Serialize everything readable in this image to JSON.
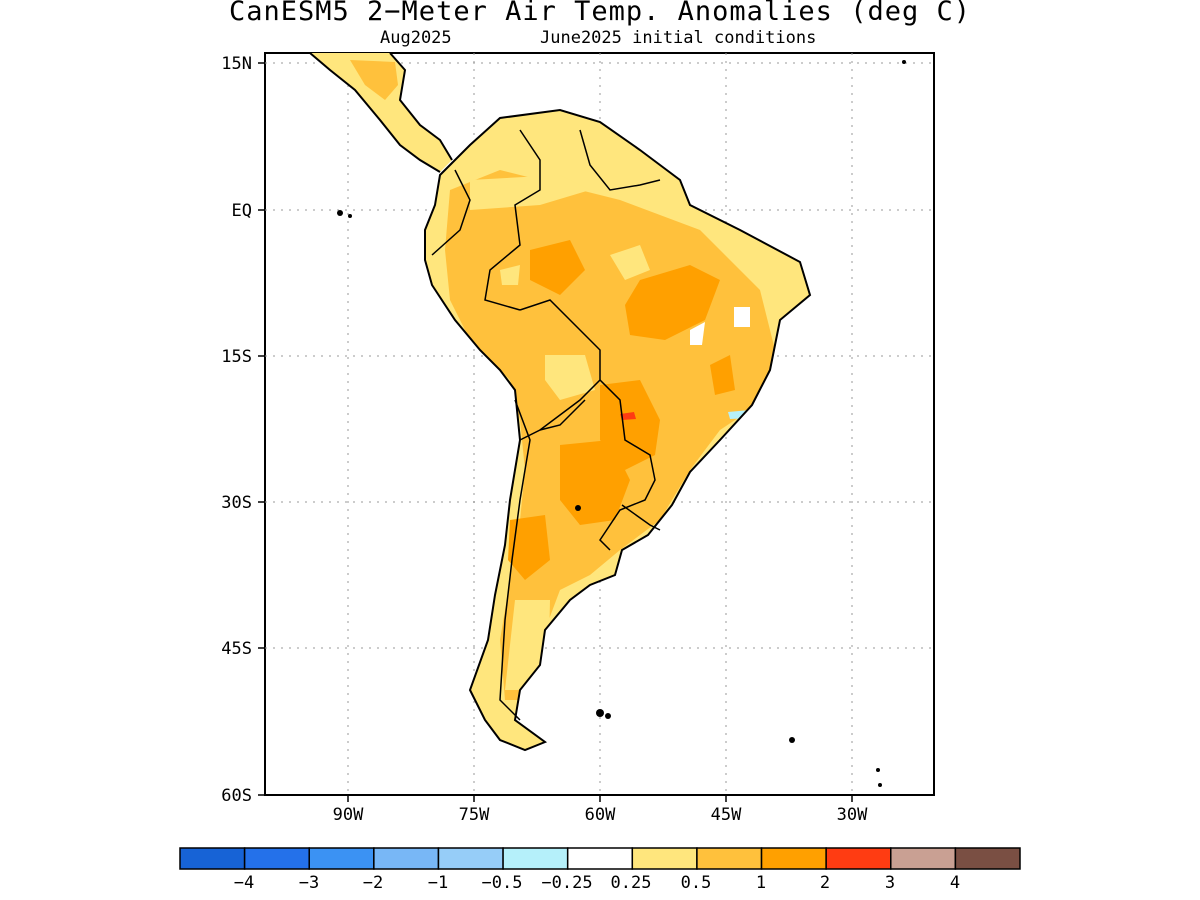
{
  "title": "CanESM5 2−Meter Air Temp. Anomalies (deg C)",
  "subtitle_left": "Aug2025",
  "subtitle_right": "June2025 initial conditions",
  "map": {
    "lon_range": [
      -105,
      -25
    ],
    "lat_range": [
      -60,
      15
    ],
    "grid": "dotted",
    "y_ticks": [
      "15N",
      "EQ",
      "15S",
      "30S",
      "45S",
      "60S"
    ],
    "x_ticks": [
      "90W",
      "75W",
      "60W",
      "45W",
      "30W"
    ]
  },
  "colorbar": {
    "colors": [
      "#1763d6",
      "#2471ea",
      "#3b92f3",
      "#78b7f6",
      "#96cdf8",
      "#b5f0fa",
      "#ffffff",
      "#ffe67d",
      "#ffc13c",
      "#ffa000",
      "#ff3c12",
      "#c9a093",
      "#7a4f43"
    ],
    "labels": [
      "−4",
      "−3",
      "−2",
      "−1",
      "−0.5",
      "−0.25",
      "0.25",
      "0.5",
      "1",
      "2",
      "3",
      "4"
    ]
  }
}
